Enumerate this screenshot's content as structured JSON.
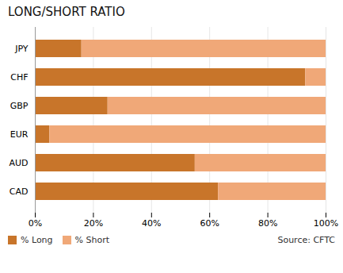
{
  "chart_data": {
    "type": "bar",
    "title": "LONG/SHORT RATIO",
    "orientation": "horizontal",
    "stacked": true,
    "categories": [
      "JPY",
      "CHF",
      "GBP",
      "EUR",
      "AUD",
      "CAD"
    ],
    "series": [
      {
        "name": "% Long",
        "color": "#C8752A",
        "values": [
          16,
          93,
          25,
          5,
          55,
          63
        ]
      },
      {
        "name": "% Short",
        "color": "#F0A878",
        "values": [
          84,
          7,
          75,
          95,
          45,
          37
        ]
      }
    ],
    "xlim": [
      0,
      100
    ],
    "xticks": [
      {
        "value": 0,
        "label": "0%"
      },
      {
        "value": 20,
        "label": "20%"
      },
      {
        "value": 40,
        "label": "40%"
      },
      {
        "value": 60,
        "label": "60%"
      },
      {
        "value": 80,
        "label": "80%"
      },
      {
        "value": 100,
        "label": "100%"
      }
    ],
    "grid": true,
    "legend": "lower left",
    "annotations": [
      "Source: CFTC"
    ]
  }
}
